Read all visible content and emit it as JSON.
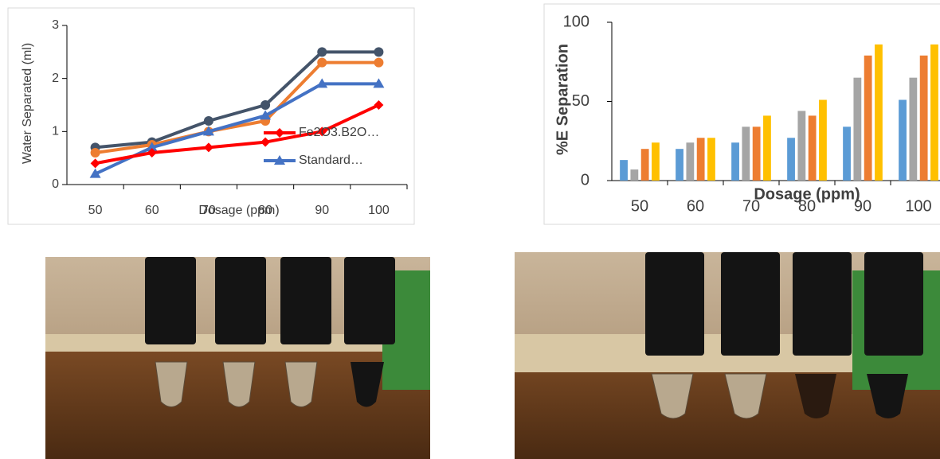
{
  "chart_data": [
    {
      "type": "line",
      "ylabel": "Water Separated (ml)",
      "xlabel": "Dosage (ppm)",
      "categories": [
        50,
        60,
        70,
        80,
        90,
        100
      ],
      "ylim": [
        0,
        3
      ],
      "yticks": [
        0,
        1,
        2,
        3
      ],
      "grid": false,
      "legend": "lower right",
      "series": [
        {
          "color": "#44546a",
          "marker": "circle",
          "values": [
            0.7,
            0.8,
            1.2,
            1.5,
            2.5,
            2.5
          ]
        },
        {
          "color": "#ed7d31",
          "marker": "circle",
          "values": [
            0.6,
            0.75,
            1.0,
            1.2,
            2.3,
            2.3
          ]
        },
        {
          "name": "Standard…",
          "color": "#4472c4",
          "marker": "triangle",
          "values": [
            0.2,
            0.7,
            1.0,
            1.3,
            1.9,
            1.9
          ]
        },
        {
          "name": "Fe2O3.B2O…",
          "color": "#ff0000",
          "marker": "diamond",
          "values": [
            0.4,
            0.6,
            0.7,
            0.8,
            1.0,
            1.5
          ]
        }
      ]
    },
    {
      "type": "bar",
      "ylabel": "%E Separation",
      "xlabel": "Dosage (ppm)",
      "categories": [
        50,
        60,
        70,
        80,
        90,
        100
      ],
      "ylim": [
        0,
        100
      ],
      "yticks": [
        0,
        50,
        100
      ],
      "grid": false,
      "series": [
        {
          "color": "#5b9bd5",
          "values": [
            13,
            20,
            24,
            27,
            34,
            51
          ]
        },
        {
          "color": "#a5a5a5",
          "values": [
            7,
            24,
            34,
            44,
            65,
            65
          ]
        },
        {
          "color": "#ed7d31",
          "values": [
            20,
            27,
            34,
            41,
            79,
            79
          ]
        },
        {
          "color": "#ffc000",
          "values": [
            24,
            27,
            41,
            51,
            86,
            86
          ]
        }
      ]
    }
  ]
}
